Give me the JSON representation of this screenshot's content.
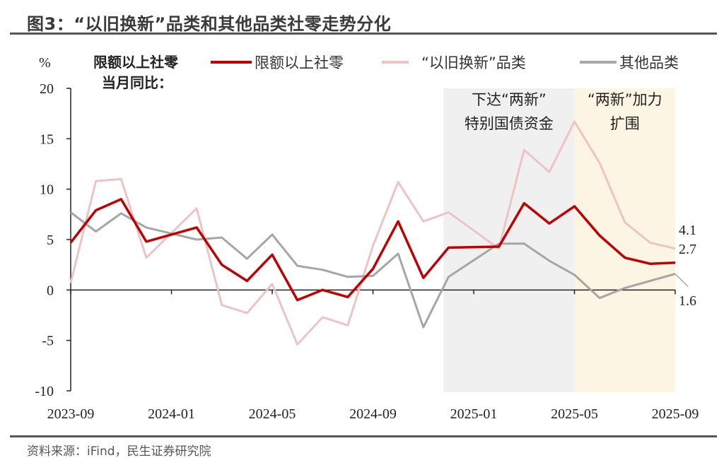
{
  "title": "图3：“以旧换新”品类和其他品类社零走势分化",
  "source": "资料来源：iFind，民生证券研究院",
  "chart_data": {
    "type": "line",
    "ylabel": "%",
    "subtitle_lines": [
      "限额以上社零",
      "当月同比："
    ],
    "ylim": [
      -10,
      20
    ],
    "yticks": [
      20,
      15,
      10,
      5,
      0,
      -5,
      -10
    ],
    "xticks": [
      "2023-09",
      "2024-01",
      "2024-05",
      "2024-09",
      "2025-01",
      "2025-05",
      "2025-09"
    ],
    "x": [
      "2023-09",
      "2023-10",
      "2023-11",
      "2023-12",
      "2024-01",
      "2024-02",
      "2024-03",
      "2024-04",
      "2024-05",
      "2024-06",
      "2024-07",
      "2024-08",
      "2024-09",
      "2024-10",
      "2024-11",
      "2024-12",
      "2025-01",
      "2025-02",
      "2025-03",
      "2025-04",
      "2025-05",
      "2025-06",
      "2025-07",
      "2025-08",
      "2025-09"
    ],
    "series": [
      {
        "name": "限额以上社零",
        "color": "#c00000",
        "values": [
          4.7,
          7.9,
          9.0,
          4.8,
          null,
          6.2,
          2.5,
          0.9,
          3.5,
          -1.0,
          0.0,
          -0.7,
          2.1,
          6.8,
          1.2,
          4.2,
          null,
          4.3,
          8.6,
          6.6,
          8.3,
          5.4,
          3.2,
          2.6,
          2.7
        ],
        "end_label": "2.7"
      },
      {
        "name": "“以旧换新”品类",
        "color": "#edc4c6",
        "values": [
          0.7,
          10.8,
          11.0,
          3.2,
          null,
          8.1,
          -1.5,
          -2.3,
          0.6,
          -5.4,
          -2.7,
          -3.5,
          4.4,
          10.7,
          6.8,
          7.7,
          null,
          4.1,
          13.9,
          11.7,
          16.7,
          12.6,
          6.7,
          4.7,
          4.1
        ],
        "end_label": "4.1"
      },
      {
        "name": "其他品类",
        "color": "#a6a6a6",
        "values": [
          7.7,
          5.8,
          7.6,
          6.2,
          null,
          5.0,
          5.2,
          3.1,
          5.5,
          2.4,
          2.0,
          1.3,
          1.4,
          3.6,
          -3.7,
          1.3,
          null,
          4.6,
          4.6,
          2.9,
          1.5,
          -0.8,
          0.2,
          0.9,
          1.6
        ],
        "end_label": "1.6"
      }
    ],
    "shaded_spans": [
      {
        "from": "2024-11-25",
        "to": "2025-05-01",
        "color": "#f0f0f0",
        "label_lines": [
          "下达“两新”",
          "特别国债资金"
        ]
      },
      {
        "from": "2025-05-01",
        "to": "2025-09-01",
        "color": "#fdf5e3",
        "label_lines": [
          "“两新”加力",
          "扩围"
        ]
      }
    ],
    "legend_position": "top",
    "grid": false
  }
}
